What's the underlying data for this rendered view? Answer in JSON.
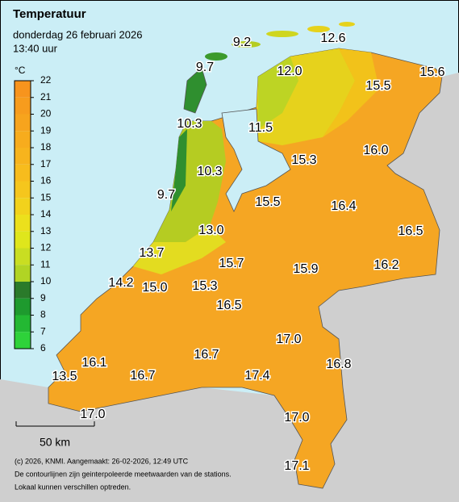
{
  "header": {
    "title": "Temperatuur",
    "date": "donderdag 26 februari 2026",
    "time": "13:40 uur"
  },
  "legend": {
    "unit": "°C",
    "labels": [
      "22",
      "21",
      "20",
      "19",
      "18",
      "17",
      "16",
      "15",
      "14",
      "13",
      "12",
      "11",
      "10",
      "9",
      "8",
      "7",
      "6"
    ]
  },
  "stations": [
    "9.2",
    "12.6",
    "9.7",
    "12.0",
    "15.5",
    "15.6",
    "10.3",
    "11.5",
    "15.3",
    "16.0",
    "10.3",
    "9.7",
    "15.5",
    "16.4",
    "13.0",
    "16.5",
    "13.7",
    "15.7",
    "15.9",
    "16.2",
    "14.2",
    "15.0",
    "15.3",
    "16.5",
    "17.0",
    "16.1",
    "16.7",
    "16.8",
    "13.5",
    "16.7",
    "17.4",
    "17.0",
    "17.0",
    "17.1"
  ],
  "scale": "50 km",
  "footer": [
    "(c) 2026, KNMI. Aangemaakt: 26-02-2026, 12:49 UTC",
    "De contourlijnen zijn geinterpoleerde meetwaarden van de stations.",
    "Lokaal kunnen verschillen optreden."
  ]
}
